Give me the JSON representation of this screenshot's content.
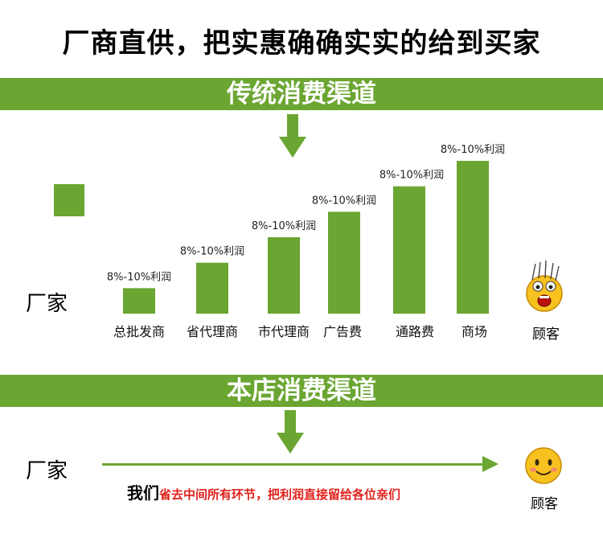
{
  "headline": "厂商直供，把实惠确确实实的给到买家",
  "traditional": {
    "band_title": "传统消费渠道",
    "factory_label": "厂家",
    "customer_label": "顾客"
  },
  "chart_data": {
    "type": "bar",
    "categories": [
      "总批发商",
      "省代理商",
      "市代理商",
      "广告费",
      "通路费",
      "商场"
    ],
    "values": [
      1,
      2,
      3,
      4,
      5,
      6
    ],
    "data_labels": [
      "8%-10%利润",
      "8%-10%利润",
      "8%-10%利润",
      "8%-10%利润",
      "8%-10%利润",
      "8%-10%利润"
    ],
    "note": "bars rise in equal steps; each intermediary adds 8%-10% profit",
    "title": "",
    "xlabel": "",
    "ylabel": "",
    "ylim": [
      0,
      6
    ],
    "grid": false,
    "bar_color": "#6aa631"
  },
  "direct": {
    "band_title": "本店消费渠道",
    "factory_label": "厂家",
    "customer_label": "顾客",
    "slogan_prefix": "我们",
    "slogan_rest": "省去中间所有环节，把利润直接留给各位亲们"
  },
  "colors": {
    "accent": "#6aa631",
    "slogan_red": "#e0201b",
    "face_yellow": "#f7c11f"
  }
}
